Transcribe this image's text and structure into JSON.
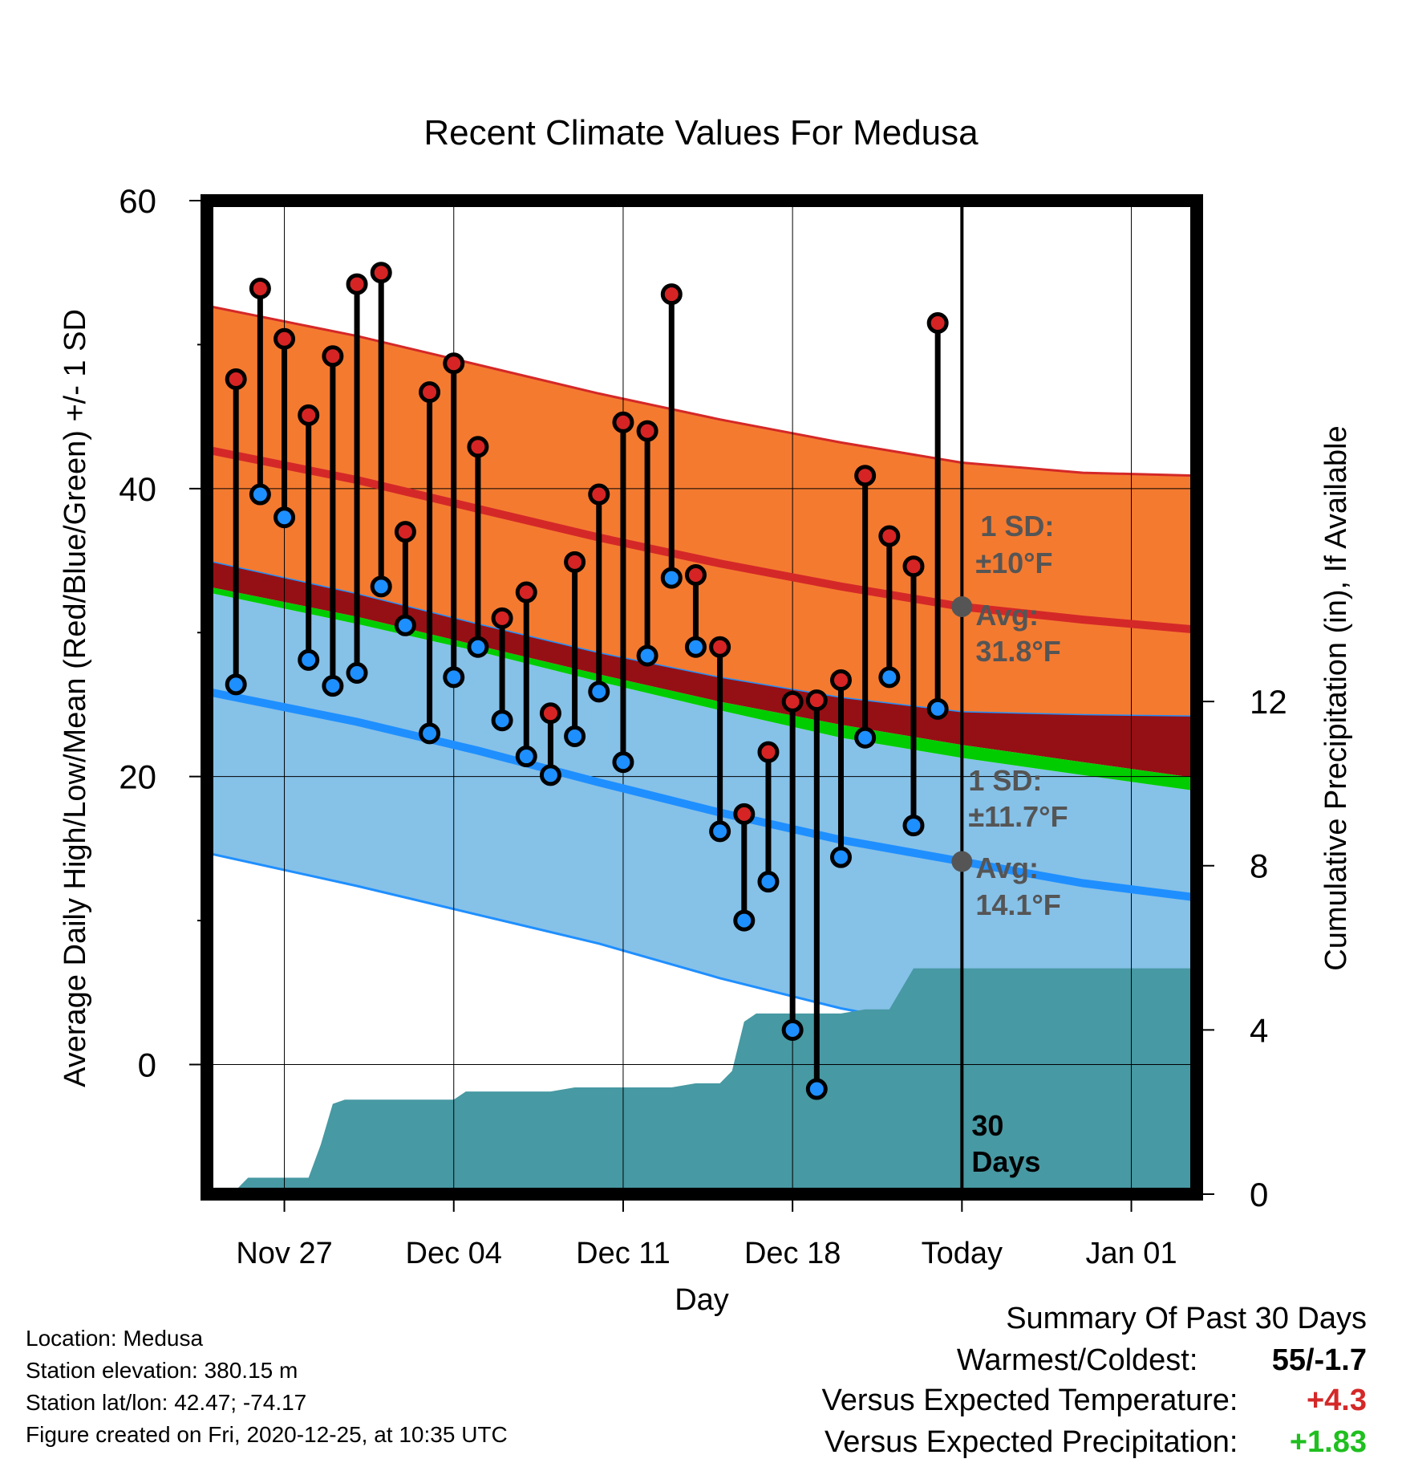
{
  "chart_data": {
    "type": "line",
    "title": "Recent Climate Values For Medusa",
    "xlabel": "Day",
    "ylabel_left": "Average Daily High/Low/Mean (Red/Blue/Green) +/- 1 SD",
    "ylabel_right": "Cumulative Precipitation (in), If Available",
    "ylim_left": [
      -9,
      60
    ],
    "ylim_right": [
      0,
      24.2
    ],
    "y_ticks_left": [
      "0",
      "20",
      "40",
      "60"
    ],
    "y_ticks_right": [
      "0",
      "4",
      "8",
      "12"
    ],
    "x_ticks": [
      {
        "day": -28,
        "label": "Nov 27"
      },
      {
        "day": -21,
        "label": "Dec 04"
      },
      {
        "day": -14,
        "label": "Dec 11"
      },
      {
        "day": -7,
        "label": "Dec 18"
      },
      {
        "day": 0,
        "label": "Today"
      },
      {
        "day": 7,
        "label": "Jan 01"
      }
    ],
    "xlim_days": [
      -31.2,
      9.7
    ],
    "normals": {
      "days": [
        -31.2,
        -25,
        -20,
        -15,
        -10,
        -5,
        0,
        5,
        9.7
      ],
      "high_mean": [
        42.7,
        40.6,
        38.6,
        36.6,
        34.8,
        33.2,
        31.8,
        30.9,
        30.2
      ],
      "high_upper": [
        52.7,
        50.6,
        48.6,
        46.6,
        44.8,
        43.2,
        41.8,
        41.1,
        40.9
      ],
      "high_lower": [
        35.0,
        32.7,
        30.6,
        28.6,
        26.9,
        25.5,
        24.5,
        24.3,
        24.2
      ],
      "mean": [
        33.2,
        31.1,
        29.1,
        27.1,
        25.2,
        23.6,
        22.2,
        21.0,
        19.9
      ],
      "low_mean": [
        25.9,
        23.8,
        21.8,
        19.6,
        17.5,
        15.6,
        14.1,
        12.6,
        11.6
      ],
      "low_upper": [
        32.8,
        30.6,
        28.7,
        26.6,
        24.6,
        22.7,
        21.3,
        20.1,
        19.0
      ],
      "low_lower": [
        14.7,
        12.4,
        10.4,
        8.4,
        6.0,
        3.9,
        2.3,
        0.8,
        -0.2
      ]
    },
    "observations": {
      "series": [
        "high",
        "low"
      ],
      "points": [
        {
          "day": -30,
          "high": 47.6,
          "low": 26.4
        },
        {
          "day": -29,
          "high": 53.9,
          "low": 39.6
        },
        {
          "day": -28,
          "high": 50.4,
          "low": 38.0
        },
        {
          "day": -27,
          "high": 45.1,
          "low": 28.1
        },
        {
          "day": -26,
          "high": 49.2,
          "low": 26.3
        },
        {
          "day": -25,
          "high": 54.2,
          "low": 27.2
        },
        {
          "day": -24,
          "high": 55.0,
          "low": 33.2
        },
        {
          "day": -23,
          "high": 37.0,
          "low": 30.5
        },
        {
          "day": -22,
          "high": 46.7,
          "low": 23.0
        },
        {
          "day": -21,
          "high": 48.7,
          "low": 26.9
        },
        {
          "day": -20,
          "high": 42.9,
          "low": 29.0
        },
        {
          "day": -19,
          "high": 31.0,
          "low": 23.9
        },
        {
          "day": -18,
          "high": 32.8,
          "low": 21.4
        },
        {
          "day": -17,
          "high": 24.4,
          "low": 20.1
        },
        {
          "day": -16,
          "high": 34.9,
          "low": 22.8
        },
        {
          "day": -15,
          "high": 39.6,
          "low": 25.9
        },
        {
          "day": -14,
          "high": 44.6,
          "low": 21.0
        },
        {
          "day": -13,
          "high": 44.0,
          "low": 28.4
        },
        {
          "day": -12,
          "high": 53.5,
          "low": 33.8
        },
        {
          "day": -11,
          "high": 34.0,
          "low": 29.0
        },
        {
          "day": -10,
          "high": 29.0,
          "low": 16.2
        },
        {
          "day": -9,
          "high": 17.4,
          "low": 10.0
        },
        {
          "day": -8,
          "high": 21.7,
          "low": 12.7
        },
        {
          "day": -7,
          "high": 25.2,
          "low": 2.4
        },
        {
          "day": -6,
          "high": 25.3,
          "low": -1.7
        },
        {
          "day": -5,
          "high": 26.7,
          "low": 14.4
        },
        {
          "day": -4,
          "high": 40.9,
          "low": 22.7
        },
        {
          "day": -3,
          "high": 36.7,
          "low": 26.9
        },
        {
          "day": -2,
          "high": 34.6,
          "low": 16.6
        },
        {
          "day": -1,
          "high": 51.5,
          "low": 24.7
        }
      ]
    },
    "precipitation": {
      "days": [
        -30.5,
        -30,
        -29.5,
        -27,
        -26.5,
        -26,
        -25.5,
        -24,
        -22,
        -21,
        -20.5,
        -18,
        -17,
        -16,
        -14,
        -12,
        -11,
        -10,
        -9.5,
        -9,
        -8.5,
        -7,
        -6,
        -5,
        -4,
        -3,
        -2.5,
        -2,
        -1,
        0,
        9.7
      ],
      "cumulative_in": [
        0,
        0.1,
        0.4,
        0.4,
        1.2,
        2.2,
        2.3,
        2.3,
        2.3,
        2.3,
        2.5,
        2.5,
        2.5,
        2.6,
        2.6,
        2.6,
        2.7,
        2.7,
        3.0,
        4.2,
        4.4,
        4.4,
        4.4,
        4.4,
        4.5,
        4.5,
        5.0,
        5.5,
        5.5,
        5.5,
        5.5
      ]
    },
    "annotations": {
      "high_sd_label": "1 SD:",
      "high_sd_value": "±10°F",
      "high_avg_label": "Avg:",
      "high_avg_value": "31.8°F",
      "low_sd_label": "1 SD:",
      "low_sd_value": "±11.7°F",
      "low_avg_label": "Avg:",
      "low_avg_value": "14.1°F",
      "days_number": "30",
      "days_word": "Days",
      "high_avg": 31.8,
      "low_avg": 14.1
    },
    "colors": {
      "high_band": "#f47a30",
      "high_line": "#d42828",
      "mean_band": "#951014",
      "mean_line": "#00cc00",
      "low_band": "#86c1e8",
      "low_line": "#1f8fff",
      "precip": "#4799a3",
      "high_dot": "#d62424",
      "low_dot": "#1e8fff",
      "annotation": "#555555"
    }
  },
  "info": {
    "location": "Location: Medusa",
    "elevation": "Station elevation: 380.15 m",
    "latlon": "Station lat/lon: 42.47; -74.17",
    "created": "Figure created on Fri, 2020-12-25, at 10:35 UTC"
  },
  "summary": {
    "title": "Summary Of Past 30 Days",
    "warmest_coldest_label": "Warmest/Coldest:",
    "warmest_coldest_value": "55/-1.7",
    "temp_label": "Versus Expected Temperature:",
    "temp_value": "+4.3",
    "temp_color": "#d42828",
    "precip_label": "Versus Expected Precipitation:",
    "precip_value": "+1.83",
    "precip_color": "#1fbf1f"
  }
}
